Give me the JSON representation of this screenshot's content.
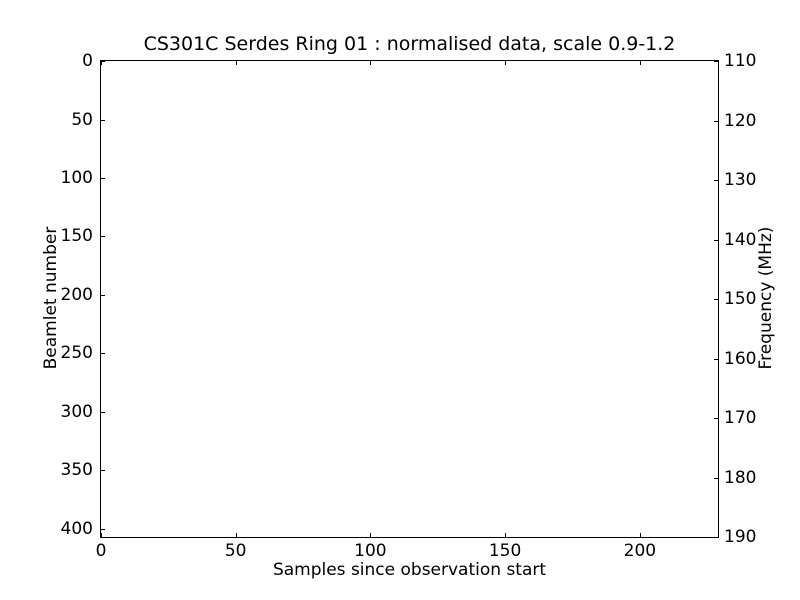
{
  "chart_data": {
    "type": "heatmap",
    "title": "CS301C Serdes Ring 01 : normalised data, scale 0.9-1.2",
    "xlabel": "Samples since observation start",
    "ylabel_left": "Beamlet number",
    "ylabel_right": "Frequency (MHz)",
    "x_axis": {
      "min": 0,
      "max": 229,
      "ticks": [
        0,
        50,
        100,
        150,
        200
      ]
    },
    "y_axis_left": {
      "top_value": 0,
      "bottom_value": 407,
      "ticks": [
        0,
        50,
        100,
        150,
        200,
        250,
        300,
        350,
        400
      ]
    },
    "y_axis_right": {
      "top_value": 110,
      "bottom_value": 190,
      "ticks": [
        110,
        120,
        130,
        140,
        150,
        160,
        170,
        180,
        190
      ]
    },
    "values": [],
    "grid": false,
    "tick_direction": "in",
    "colors": {
      "foreground": "#000000",
      "background": "#ffffff"
    }
  }
}
